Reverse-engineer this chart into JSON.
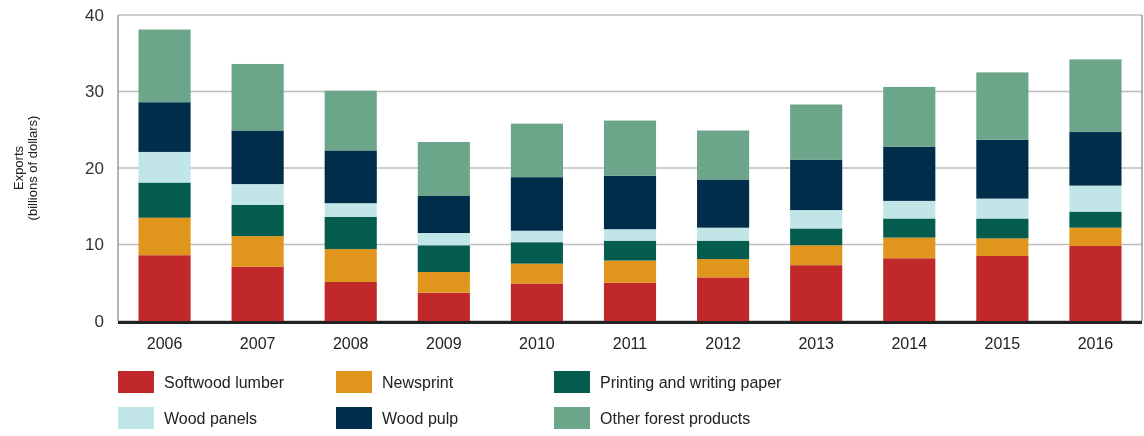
{
  "chart_data": {
    "type": "bar",
    "stacked": true,
    "ylabel": "Exports\n(billions of dollars)",
    "categories": [
      "2006",
      "2007",
      "2008",
      "2009",
      "2010",
      "2011",
      "2012",
      "2013",
      "2014",
      "2015",
      "2016"
    ],
    "series": [
      {
        "name": "Softwood lumber",
        "color": "#c0282a",
        "values": [
          8.6,
          7.1,
          5.1,
          3.7,
          4.9,
          5.0,
          5.7,
          7.3,
          8.2,
          8.5,
          9.8
        ]
      },
      {
        "name": "Newsprint",
        "color": "#e0961c",
        "values": [
          4.9,
          4.0,
          4.3,
          2.7,
          2.6,
          2.9,
          2.4,
          2.6,
          2.7,
          2.3,
          2.4
        ]
      },
      {
        "name": "Printing and writing paper",
        "color": "#035c4e",
        "values": [
          4.6,
          4.1,
          4.2,
          3.5,
          2.8,
          2.6,
          2.4,
          2.2,
          2.5,
          2.6,
          2.1
        ]
      },
      {
        "name": "Wood panels",
        "color": "#c2e6e7",
        "values": [
          4.0,
          2.7,
          1.8,
          1.6,
          1.5,
          1.5,
          1.7,
          2.4,
          2.3,
          2.6,
          3.4
        ]
      },
      {
        "name": "Wood pulp",
        "color": "#002e4a",
        "values": [
          6.5,
          7.0,
          6.9,
          4.9,
          7.0,
          7.0,
          6.3,
          6.6,
          7.1,
          7.7,
          7.0
        ]
      },
      {
        "name": "Other forest products",
        "color": "#6ba58a",
        "values": [
          9.5,
          8.7,
          7.8,
          7.0,
          7.0,
          7.2,
          6.4,
          7.2,
          7.8,
          8.8,
          9.5
        ]
      }
    ],
    "ylim": [
      0,
      40
    ],
    "yticks": [
      0,
      10,
      20,
      30,
      40
    ],
    "grid": "y",
    "legend": "bottom"
  }
}
